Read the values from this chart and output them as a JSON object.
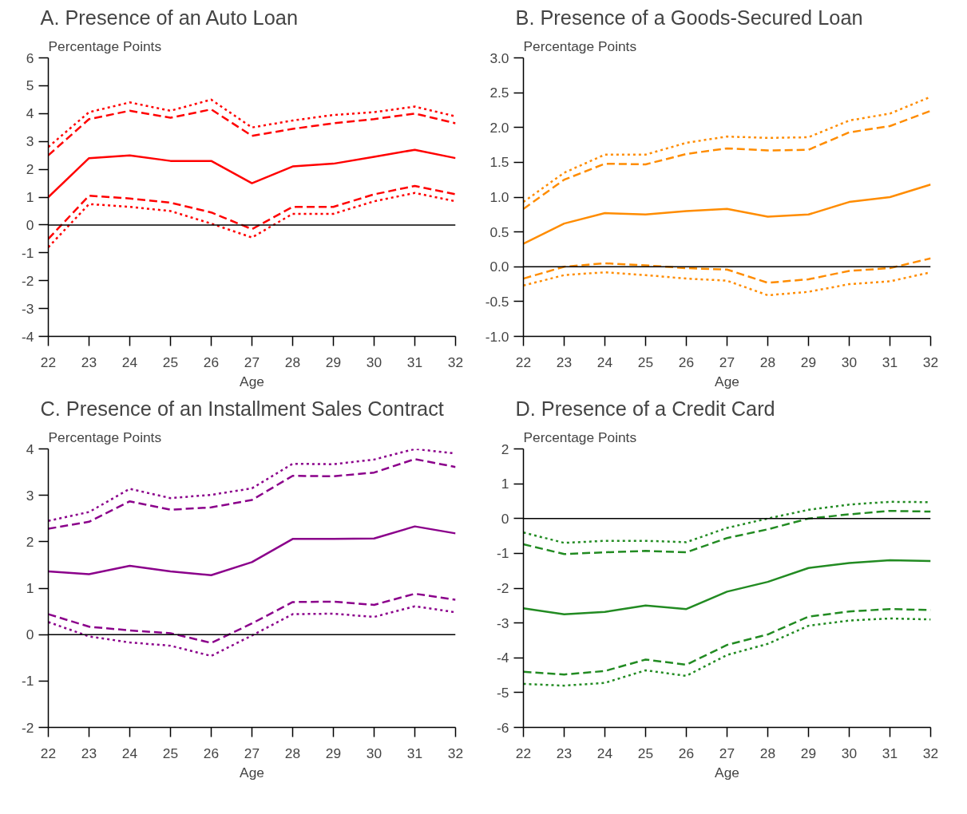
{
  "chart_data": [
    {
      "type": "line",
      "title": "A. Presence of an Auto Loan",
      "ylabel": "Percentage Points",
      "xlabel": "Age",
      "x": [
        22,
        23,
        24,
        25,
        26,
        27,
        28,
        29,
        30,
        31,
        32
      ],
      "xlim": [
        22,
        32
      ],
      "xticks": [
        22,
        23,
        24,
        25,
        26,
        27,
        28,
        29,
        30,
        31,
        32
      ],
      "ylim": [
        -4,
        6
      ],
      "yticks": [
        -4,
        -3,
        -2,
        -1,
        0,
        1,
        2,
        3,
        4,
        5,
        6
      ],
      "grid": false,
      "marker": "none",
      "ref_lines": [
        {
          "axis": "y",
          "value": 0,
          "color": "#000000"
        }
      ],
      "series": [
        {
          "color": "#ff0000",
          "line_style": "solid",
          "values": [
            1.0,
            2.4,
            2.5,
            2.3,
            2.3,
            1.5,
            2.1,
            2.2,
            2.45,
            2.7,
            2.4
          ]
        },
        {
          "color": "#ff0000",
          "line_style": "dashed",
          "values": [
            2.5,
            3.8,
            4.1,
            3.85,
            4.15,
            3.2,
            3.45,
            3.65,
            3.8,
            4.0,
            3.65
          ]
        },
        {
          "color": "#ff0000",
          "line_style": "dotted",
          "values": [
            2.8,
            4.05,
            4.4,
            4.1,
            4.5,
            3.5,
            3.75,
            3.95,
            4.05,
            4.25,
            3.9
          ]
        },
        {
          "color": "#ff0000",
          "line_style": "dashed",
          "values": [
            -0.5,
            1.05,
            0.95,
            0.8,
            0.45,
            -0.15,
            0.65,
            0.65,
            1.1,
            1.4,
            1.1
          ]
        },
        {
          "color": "#ff0000",
          "line_style": "dotted",
          "values": [
            -0.8,
            0.75,
            0.65,
            0.5,
            0.05,
            -0.45,
            0.4,
            0.4,
            0.85,
            1.15,
            0.85
          ]
        }
      ]
    },
    {
      "type": "line",
      "title": "B. Presence of a Goods-Secured Loan",
      "ylabel": "Percentage Points",
      "xlabel": "Age",
      "x": [
        22,
        23,
        24,
        25,
        26,
        27,
        28,
        29,
        30,
        31,
        32
      ],
      "xlim": [
        22,
        32
      ],
      "xticks": [
        22,
        23,
        24,
        25,
        26,
        27,
        28,
        29,
        30,
        31,
        32
      ],
      "ylim": [
        -1,
        3
      ],
      "yticks": [
        {
          "value": -1,
          "label": "-1.0"
        },
        {
          "value": -0.5,
          "label": "-0.5"
        },
        {
          "value": 0,
          "label": "0.0"
        },
        {
          "value": 0.5,
          "label": "0.5"
        },
        {
          "value": 1,
          "label": "1.0"
        },
        {
          "value": 1.5,
          "label": "1.5"
        },
        {
          "value": 2,
          "label": "2.0"
        },
        {
          "value": 2.5,
          "label": "2.5"
        },
        {
          "value": 3,
          "label": "3.0"
        }
      ],
      "grid": false,
      "marker": "none",
      "ref_lines": [
        {
          "axis": "y",
          "value": 0,
          "color": "#000000"
        }
      ],
      "series": [
        {
          "color": "#ff8c00",
          "line_style": "solid",
          "values": [
            0.33,
            0.62,
            0.77,
            0.75,
            0.8,
            0.83,
            0.72,
            0.75,
            0.93,
            1.0,
            1.18
          ]
        },
        {
          "color": "#ff8c00",
          "line_style": "dashed",
          "values": [
            0.83,
            1.25,
            1.48,
            1.47,
            1.62,
            1.7,
            1.67,
            1.68,
            1.93,
            2.02,
            2.24
          ]
        },
        {
          "color": "#ff8c00",
          "line_style": "dotted",
          "values": [
            0.93,
            1.35,
            1.61,
            1.61,
            1.78,
            1.87,
            1.85,
            1.86,
            2.1,
            2.2,
            2.44
          ]
        },
        {
          "color": "#ff8c00",
          "line_style": "dashed",
          "values": [
            -0.17,
            0.0,
            0.05,
            0.02,
            -0.02,
            -0.04,
            -0.23,
            -0.18,
            -0.06,
            -0.02,
            0.12
          ]
        },
        {
          "color": "#ff8c00",
          "line_style": "dotted",
          "values": [
            -0.27,
            -0.12,
            -0.08,
            -0.12,
            -0.17,
            -0.2,
            -0.41,
            -0.36,
            -0.25,
            -0.21,
            -0.08
          ]
        }
      ]
    },
    {
      "type": "line",
      "title": "C. Presence of an Installment Sales Contract",
      "ylabel": "Percentage Points",
      "xlabel": "Age",
      "x": [
        22,
        23,
        24,
        25,
        26,
        27,
        28,
        29,
        30,
        31,
        32
      ],
      "xlim": [
        22,
        32
      ],
      "xticks": [
        22,
        23,
        24,
        25,
        26,
        27,
        28,
        29,
        30,
        31,
        32
      ],
      "ylim": [
        -2,
        4
      ],
      "yticks": [
        -2,
        -1,
        0,
        1,
        2,
        3,
        4
      ],
      "grid": false,
      "marker": "none",
      "ref_lines": [
        {
          "axis": "y",
          "value": 0,
          "color": "#000000"
        }
      ],
      "series": [
        {
          "color": "#8b008b",
          "line_style": "solid",
          "values": [
            1.36,
            1.3,
            1.48,
            1.36,
            1.28,
            1.56,
            2.06,
            2.06,
            2.07,
            2.33,
            2.18
          ]
        },
        {
          "color": "#8b008b",
          "line_style": "dashed",
          "values": [
            2.28,
            2.43,
            2.87,
            2.69,
            2.74,
            2.9,
            3.42,
            3.41,
            3.49,
            3.78,
            3.61
          ]
        },
        {
          "color": "#8b008b",
          "line_style": "dotted",
          "values": [
            2.45,
            2.64,
            3.14,
            2.94,
            3.01,
            3.15,
            3.68,
            3.67,
            3.77,
            4.0,
            3.9
          ]
        },
        {
          "color": "#8b008b",
          "line_style": "dashed",
          "values": [
            0.44,
            0.17,
            0.09,
            0.03,
            -0.18,
            0.24,
            0.7,
            0.71,
            0.64,
            0.88,
            0.75
          ]
        },
        {
          "color": "#8b008b",
          "line_style": "dotted",
          "values": [
            0.27,
            -0.04,
            -0.17,
            -0.24,
            -0.46,
            -0.02,
            0.44,
            0.45,
            0.38,
            0.61,
            0.48
          ]
        }
      ]
    },
    {
      "type": "line",
      "title": "D. Presence of a Credit Card",
      "ylabel": "Percentage Points",
      "xlabel": "Age",
      "x": [
        22,
        23,
        24,
        25,
        26,
        27,
        28,
        29,
        30,
        31,
        32
      ],
      "xlim": [
        22,
        32
      ],
      "xticks": [
        22,
        23,
        24,
        25,
        26,
        27,
        28,
        29,
        30,
        31,
        32
      ],
      "ylim": [
        -6,
        2
      ],
      "yticks": [
        -6,
        -5,
        -4,
        -3,
        -2,
        -1,
        0,
        1,
        2
      ],
      "grid": false,
      "marker": "none",
      "ref_lines": [
        {
          "axis": "y",
          "value": 0,
          "color": "#000000"
        }
      ],
      "series": [
        {
          "color": "#228b22",
          "line_style": "solid",
          "values": [
            -2.58,
            -2.75,
            -2.68,
            -2.5,
            -2.6,
            -2.1,
            -1.82,
            -1.42,
            -1.28,
            -1.2,
            -1.22
          ]
        },
        {
          "color": "#228b22",
          "line_style": "dashed",
          "values": [
            -0.74,
            -1.02,
            -0.97,
            -0.93,
            -0.97,
            -0.56,
            -0.31,
            0.0,
            0.12,
            0.22,
            0.2
          ]
        },
        {
          "color": "#228b22",
          "line_style": "dotted",
          "values": [
            -0.4,
            -0.7,
            -0.64,
            -0.64,
            -0.68,
            -0.27,
            0.0,
            0.25,
            0.4,
            0.48,
            0.47
          ]
        },
        {
          "color": "#228b22",
          "line_style": "dashed",
          "values": [
            -4.4,
            -4.48,
            -4.38,
            -4.05,
            -4.2,
            -3.63,
            -3.33,
            -2.82,
            -2.67,
            -2.6,
            -2.63
          ]
        },
        {
          "color": "#228b22",
          "line_style": "dotted",
          "values": [
            -4.75,
            -4.8,
            -4.72,
            -4.36,
            -4.52,
            -3.92,
            -3.6,
            -3.08,
            -2.93,
            -2.87,
            -2.9
          ]
        }
      ]
    }
  ]
}
